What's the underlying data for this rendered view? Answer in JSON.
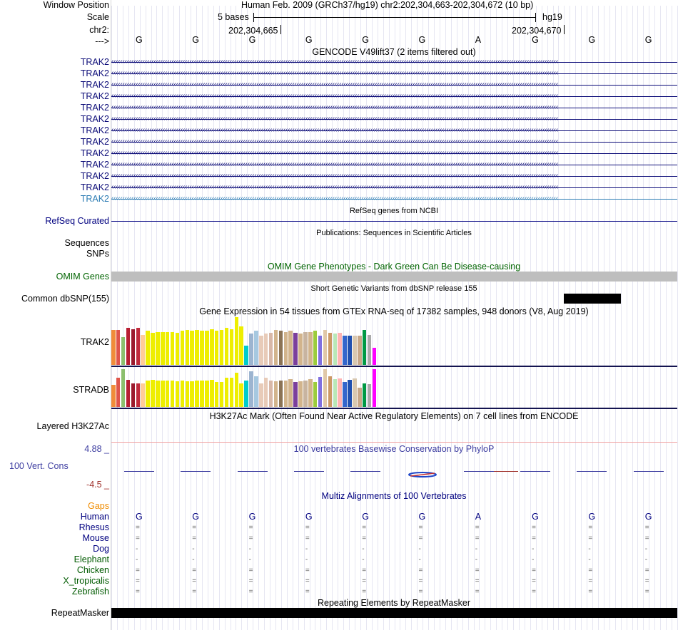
{
  "header": {
    "window_position_label": "Window Position",
    "window_position_value": "Human Feb. 2009 (GRCh37/hg19)   chr2:202,304,663-202,304,672 (10 bp)",
    "scale_label": "Scale",
    "scale_text": "5 bases",
    "scale_assembly": "hg19",
    "chr_label": "chr2:",
    "coord_left": "202,304,665",
    "coord_right": "202,304,670",
    "strand_label": "--->"
  },
  "sequence": [
    "G",
    "G",
    "G",
    "G",
    "G",
    "G",
    "A",
    "G",
    "G",
    "G"
  ],
  "gencode": {
    "title": "GENCODE V49lift37 (2 items filtered out)",
    "genes": [
      "TRAK2",
      "TRAK2",
      "TRAK2",
      "TRAK2",
      "TRAK2",
      "TRAK2",
      "TRAK2",
      "TRAK2",
      "TRAK2",
      "TRAK2",
      "TRAK2",
      "TRAK2",
      "TRAK2"
    ]
  },
  "refseq": {
    "title": "RefSeq genes from NCBI",
    "label": "RefSeq Curated"
  },
  "publications": {
    "title": "Publications: Sequences in Scientific Articles",
    "labels": [
      "Sequences",
      "SNPs"
    ]
  },
  "omim": {
    "title": "OMIM Gene Phenotypes - Dark Green Can Be Disease-causing",
    "label": "OMIM Genes"
  },
  "dbsnp": {
    "title": "Short Genetic Variants from dbSNP release 155",
    "label": "Common dbSNP(155)"
  },
  "gtex": {
    "title": "Gene Expression in 54 tissues from GTEx RNA-seq of 17382 samples, 948 donors (V8, Aug 2019)",
    "genes": [
      {
        "name": "TRAK2",
        "values": [
          0.72,
          0.72,
          0.58,
          0.76,
          0.74,
          0.76,
          0.62,
          0.7,
          0.66,
          0.68,
          0.68,
          0.68,
          0.68,
          0.66,
          0.7,
          0.72,
          0.7,
          0.72,
          0.7,
          0.7,
          0.74,
          0.7,
          0.72,
          0.76,
          0.74,
          0.98,
          0.8,
          0.4,
          0.64,
          0.7,
          0.6,
          0.64,
          0.66,
          0.72,
          0.7,
          0.68,
          0.7,
          0.66,
          0.64,
          0.68,
          0.68,
          0.7,
          0.6,
          0.72,
          0.66,
          0.64,
          0.66,
          0.6,
          0.6,
          0.6,
          0.6,
          0.72,
          0.62,
          0.36
        ]
      },
      {
        "name": "STRADB",
        "values": [
          0.58,
          0.76,
          0.98,
          0.7,
          0.62,
          0.62,
          0.62,
          0.68,
          0.7,
          0.68,
          0.68,
          0.68,
          0.68,
          0.66,
          0.68,
          0.66,
          0.66,
          0.68,
          0.68,
          0.68,
          0.7,
          0.64,
          0.64,
          0.76,
          0.76,
          0.88,
          0.62,
          0.68,
          0.92,
          0.8,
          0.62,
          0.76,
          0.68,
          0.66,
          0.68,
          0.68,
          0.72,
          0.64,
          0.66,
          0.68,
          0.72,
          0.64,
          0.78,
          0.98,
          0.8,
          0.72,
          0.74,
          0.64,
          0.7,
          0.74,
          0.5,
          0.62,
          0.6,
          0.98
        ]
      }
    ],
    "colors": [
      "#f08c3a",
      "#e0554a",
      "#8cbf6e",
      "#b81e33",
      "#9c1a2e",
      "#c02a3c",
      "#ffcc99",
      "#eeee00",
      "#eeee00",
      "#eeee00",
      "#eeee00",
      "#eeee00",
      "#eeee00",
      "#eeee00",
      "#eeee00",
      "#eeee00",
      "#eeee00",
      "#eeee00",
      "#eeee00",
      "#eeee00",
      "#eeee00",
      "#eeee00",
      "#eeee00",
      "#eeee00",
      "#eeee00",
      "#eeee00",
      "#eeee00",
      "#00cccc",
      "#9cb4d0",
      "#a6c8e0",
      "#e8cbb8",
      "#e8cbb8",
      "#d8b8a8",
      "#d2b48c",
      "#8b7355",
      "#d2b48c",
      "#d2b48c",
      "#7b3f9c",
      "#d2b48c",
      "#c8b4a0",
      "#d2b48c",
      "#9ccc3c",
      "#8070e0",
      "#e0c8a8",
      "#cc9966",
      "#b8e8b8",
      "#ffb4b4",
      "#3366cc",
      "#2050b0",
      "#d8c8b0",
      "#c8a888",
      "#009944",
      "#aaaaaa",
      "#ff00ff"
    ]
  },
  "h3k27ac": {
    "title": "H3K27Ac Mark (Often Found Near Active Regulatory Elements) on 7 cell lines from ENCODE",
    "label": "Layered H3K27Ac"
  },
  "phylop": {
    "title": "100 vertebrates Basewise Conservation by PhyloP",
    "label": "100 Vert. Cons",
    "max": "4.88 _",
    "min": "-4.5 _"
  },
  "multiz": {
    "title": "Multiz Alignments of 100 Vertebrates",
    "gaps_label": "Gaps",
    "species": [
      {
        "name": "Human",
        "chars": [
          "G",
          "G",
          "G",
          "G",
          "G",
          "G",
          "A",
          "G",
          "G",
          "G"
        ]
      },
      {
        "name": "Rhesus",
        "chars": [
          "=",
          "=",
          "=",
          "=",
          "=",
          "=",
          "=",
          "=",
          "=",
          "="
        ]
      },
      {
        "name": "Mouse",
        "chars": [
          "=",
          "=",
          "=",
          "=",
          "=",
          "=",
          "=",
          "=",
          "=",
          "="
        ]
      },
      {
        "name": "Dog",
        "chars": [
          "-",
          "-",
          "-",
          "-",
          "-",
          "-",
          "-",
          "-",
          "-",
          "-"
        ]
      },
      {
        "name": "Elephant",
        "chars": [
          "-",
          "-",
          "-",
          "-",
          "-",
          "-",
          "-",
          "-",
          "-",
          "-"
        ]
      },
      {
        "name": "Chicken",
        "chars": [
          "=",
          "=",
          "=",
          "=",
          "=",
          "=",
          "=",
          "=",
          "=",
          "="
        ]
      },
      {
        "name": "X_tropicalis",
        "chars": [
          "=",
          "=",
          "=",
          "=",
          "=",
          "=",
          "=",
          "=",
          "=",
          "="
        ]
      },
      {
        "name": "Zebrafish",
        "chars": [
          "=",
          "=",
          "=",
          "=",
          "=",
          "=",
          "=",
          "=",
          "=",
          "="
        ]
      }
    ]
  },
  "repeatmasker": {
    "title": "Repeating Elements by RepeatMasker",
    "label": "RepeatMasker"
  },
  "colors": {
    "gencode_blue": "#0c0c78",
    "gencode_light": "#2c7cb4",
    "label_blue": "#000080",
    "omim_green": "#006400",
    "phylop_blue": "#3c3ca0",
    "phylop_red": "#a0322d",
    "gaps_orange": "#f08c00",
    "species_green": "#005a00"
  }
}
